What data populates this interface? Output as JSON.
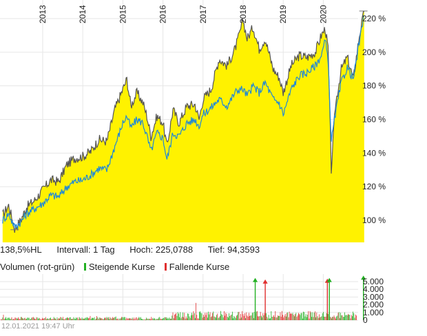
{
  "chart_data": [
    {
      "type": "area",
      "x_ticks": [
        "2013",
        "2014",
        "2015",
        "2016",
        "2017",
        "2018",
        "2019",
        "2020"
      ],
      "y_ticks": [
        "100 %",
        "120 %",
        "140 %",
        "160 %",
        "180 %",
        "200 %",
        "220 %"
      ],
      "ylim": [
        87,
        225
      ],
      "grid": true,
      "area_color": "#fff200",
      "series": [
        {
          "color": "#555555",
          "x": [
            2012.0,
            2012.15,
            2012.3,
            2012.45,
            2012.6,
            2012.8,
            2013.0,
            2013.2,
            2013.4,
            2013.6,
            2013.8,
            2014.0,
            2014.2,
            2014.4,
            2014.6,
            2014.8,
            2015.0,
            2015.1,
            2015.2,
            2015.35,
            2015.5,
            2015.6,
            2015.7,
            2015.85,
            2016.0,
            2016.1,
            2016.25,
            2016.4,
            2016.6,
            2016.8,
            2016.9,
            2017.0,
            2017.2,
            2017.4,
            2017.6,
            2017.8,
            2017.9,
            2018.0,
            2018.1,
            2018.25,
            2018.4,
            2018.55,
            2018.75,
            2018.9,
            2019.0,
            2019.2,
            2019.4,
            2019.6,
            2019.8,
            2019.95,
            2020.05,
            2020.12,
            2020.2,
            2020.3,
            2020.45,
            2020.6,
            2020.75,
            2020.9,
            2021.02
          ],
          "y": [
            103,
            109,
            95,
            100,
            108,
            112,
            118,
            124,
            123,
            133,
            137,
            138,
            141,
            148,
            147,
            166,
            178,
            184,
            168,
            176,
            170,
            162,
            150,
            162,
            158,
            144,
            166,
            158,
            168,
            169,
            160,
            172,
            178,
            196,
            192,
            202,
            210,
            219,
            208,
            215,
            202,
            208,
            190,
            185,
            176,
            192,
            198,
            197,
            200,
            210,
            214,
            202,
            130,
            168,
            190,
            197,
            184,
            210,
            224
          ]
        },
        {
          "color": "#1e88d8",
          "x": [
            2012.0,
            2012.15,
            2012.3,
            2012.45,
            2012.6,
            2012.8,
            2013.0,
            2013.2,
            2013.4,
            2013.6,
            2013.8,
            2014.0,
            2014.2,
            2014.4,
            2014.6,
            2014.8,
            2015.0,
            2015.1,
            2015.2,
            2015.35,
            2015.5,
            2015.6,
            2015.7,
            2015.85,
            2016.0,
            2016.1,
            2016.25,
            2016.4,
            2016.6,
            2016.8,
            2016.9,
            2017.0,
            2017.2,
            2017.4,
            2017.6,
            2017.8,
            2017.9,
            2018.0,
            2018.1,
            2018.25,
            2018.4,
            2018.55,
            2018.75,
            2018.9,
            2019.0,
            2019.2,
            2019.4,
            2019.6,
            2019.8,
            2019.95,
            2020.05,
            2020.12,
            2020.2,
            2020.3,
            2020.45,
            2020.6,
            2020.75,
            2020.9,
            2021.02
          ],
          "y": [
            100,
            104,
            96,
            99,
            104,
            107,
            110,
            115,
            114,
            120,
            123,
            124,
            127,
            131,
            130,
            144,
            158,
            162,
            155,
            160,
            158,
            150,
            141,
            152,
            149,
            136,
            152,
            150,
            158,
            160,
            156,
            163,
            167,
            172,
            168,
            176,
            178,
            178,
            174,
            180,
            176,
            182,
            172,
            170,
            163,
            178,
            186,
            188,
            192,
            198,
            207,
            196,
            147,
            163,
            182,
            191,
            184,
            206,
            222
          ]
        }
      ]
    },
    {
      "type": "bar",
      "y_ticks": [
        "0",
        "1.000",
        "2.000",
        "3.000",
        "4.000",
        "5.000"
      ],
      "ylim": [
        0,
        5800
      ],
      "up_color": "#22b022",
      "down_color": "#e03030",
      "spikes": [
        {
          "x": 2018.3,
          "value": 5300,
          "up": true
        },
        {
          "x": 2018.55,
          "value": 5100,
          "up": false
        },
        {
          "x": 2020.1,
          "value": 5200,
          "up": false
        },
        {
          "x": 2020.15,
          "value": 5300,
          "up": true
        },
        {
          "x": 2021.0,
          "value": 5600,
          "up": true
        }
      ]
    }
  ],
  "info": {
    "percent": "138,5%HL",
    "interval": "Intervall: 1 Tag",
    "high": "Hoch: 225,0788",
    "low": "Tief: 94,3593"
  },
  "volume_legend": {
    "title": "Volumen (rot-grün)",
    "up": "Steigende Kurse",
    "down": "Fallende Kurse"
  },
  "timestamp": "12.01.2021 19:47 Uhr"
}
